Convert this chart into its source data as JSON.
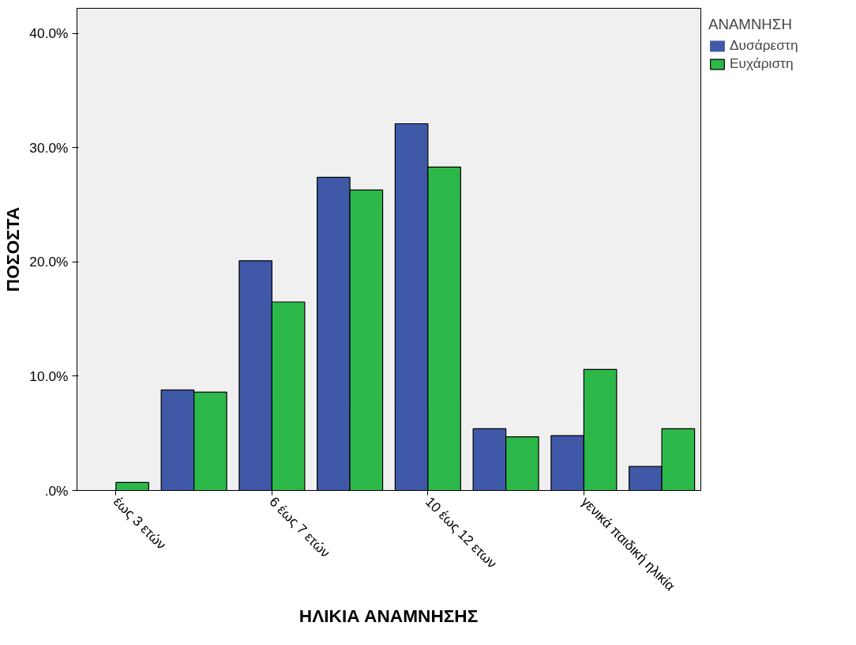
{
  "chart_data": {
    "type": "bar",
    "xlabel": "ΗΛΙΚΙΑ ΑΝΑΜΝΗΣΗΣ",
    "ylabel": "ΠΟΣΟΣΤΑ",
    "legend_title": "ΑΝΑΜΝΗΣΗ",
    "categories": [
      "έως 3 ετών",
      null,
      "6 έως 7 ετών",
      null,
      "10 έως 12 ετων",
      null,
      "γενικά παιδική ηλικία",
      null
    ],
    "series": [
      {
        "name": "Δυσάρεστη",
        "color": "#3f58a8",
        "values": [
          0,
          8.8,
          20.1,
          27.4,
          32.1,
          5.4,
          4.8,
          2.1
        ]
      },
      {
        "name": "Ευχάριστη",
        "color": "#2db84a",
        "values": [
          0.7,
          8.6,
          16.5,
          26.3,
          28.3,
          4.7,
          10.6,
          5.4
        ]
      }
    ],
    "ylim": [
      0,
      42.2
    ],
    "yticks": [
      {
        "value": 0,
        "label": ".0%"
      },
      {
        "value": 10,
        "label": "10.0%"
      },
      {
        "value": 20,
        "label": "20.0%"
      },
      {
        "value": 30,
        "label": "30.0%"
      },
      {
        "value": 40,
        "label": "40.0%"
      }
    ],
    "grid": false,
    "legend": "top right"
  }
}
